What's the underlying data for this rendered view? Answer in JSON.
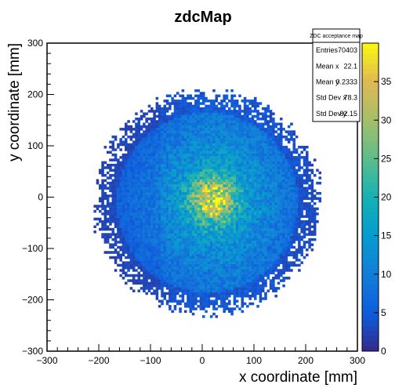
{
  "chart_data": {
    "type": "heatmap",
    "title": "zdcMap",
    "xlabel": "x coordinate [mm]",
    "ylabel": "y coordinate [mm]",
    "xlim": [
      -300,
      300
    ],
    "ylim": [
      -300,
      300
    ],
    "x_ticks": [
      "−300",
      "−200",
      "−100",
      "0",
      "100",
      "200",
      "300"
    ],
    "y_ticks": [
      "−300",
      "−200",
      "−100",
      "0",
      "100",
      "200",
      "300"
    ],
    "x_tick_values": [
      -300,
      -200,
      -100,
      0,
      100,
      200,
      300
    ],
    "y_tick_values": [
      -300,
      -200,
      -100,
      0,
      100,
      200,
      300
    ],
    "colorbar": {
      "range": [
        0,
        40
      ],
      "tick_values": [
        0,
        5,
        10,
        15,
        20,
        25,
        30,
        35
      ],
      "tick_labels": [
        "0",
        "5",
        "10",
        "15",
        "20",
        "25",
        "30",
        "35"
      ]
    },
    "distribution": {
      "shape": "disk",
      "center_mm": [
        10,
        -10
      ],
      "radius_mm": 215,
      "peak_mm": [
        20,
        -5
      ],
      "peak_value": 35,
      "bin_size_mm": 5
    },
    "stats_box": {
      "title": "ZDC acceptance map",
      "rows": [
        {
          "label": "Entries",
          "value": "70403"
        },
        {
          "label": "Mean x",
          "value": "22.1"
        },
        {
          "label": "Mean y",
          "value": "0.2333"
        },
        {
          "label": "Std Dev x",
          "value": "78.3"
        },
        {
          "label": "Std Dev y",
          "value": "82.15"
        }
      ]
    },
    "grid": false,
    "legend": "top-right"
  }
}
